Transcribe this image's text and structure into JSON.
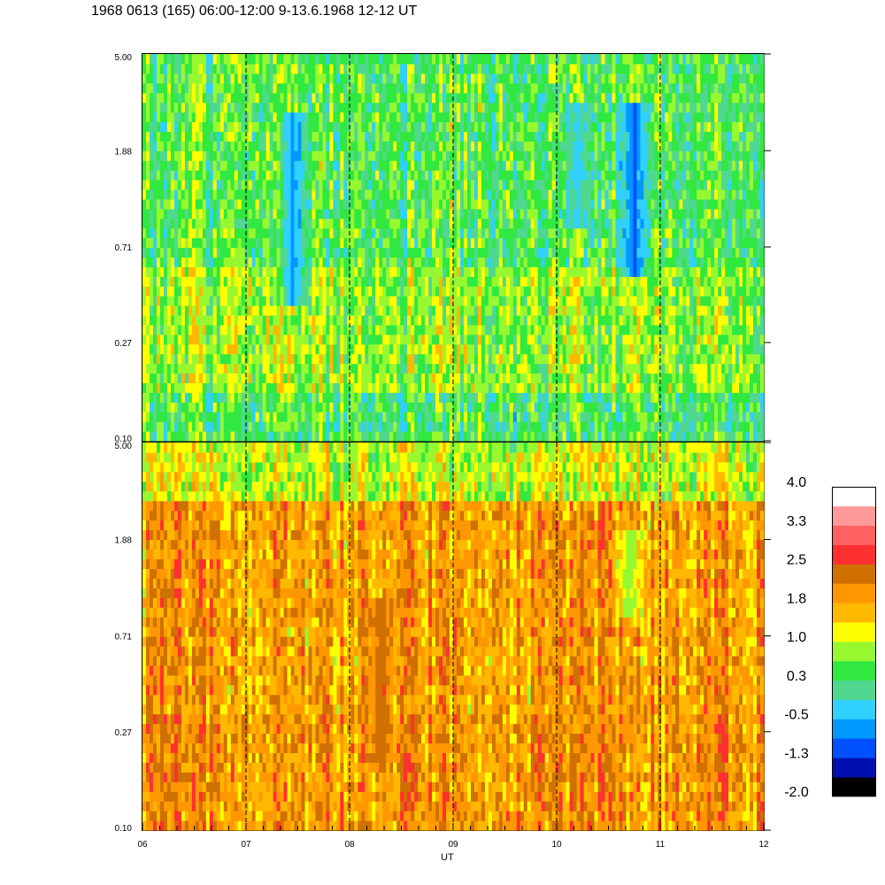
{
  "title": "1968 0613 (165) 06:00-12:00 9-13.6.1968  12-12 UT",
  "xlabel": "UT",
  "x_ticks": [
    "06",
    "07",
    "08",
    "09",
    "10",
    "11",
    "12"
  ],
  "y_ticks": [
    "0.10",
    "0.27",
    "0.71",
    "1.88",
    "5.00"
  ],
  "colorbar": {
    "labels": [
      "4.0",
      "3.3",
      "2.5",
      "1.8",
      "1.0",
      "0.3",
      "-0.5",
      "-1.3",
      "-2.0"
    ],
    "colors": [
      "#000000",
      "#0010b0",
      "#0050ff",
      "#0098ff",
      "#30d0ff",
      "#50d890",
      "#30e840",
      "#98f830",
      "#ffff00",
      "#ffb800",
      "#ff9800",
      "#d07000",
      "#ff3030",
      "#ff6060",
      "#ff9898",
      "#ffffff"
    ]
  },
  "chart_data": [
    {
      "type": "heatmap",
      "panel": "upper",
      "xlabel": "UT",
      "x_range": [
        6,
        12
      ],
      "y_ticks": [
        0.1,
        0.27,
        0.71,
        1.88,
        5.0
      ],
      "y_scale": "log",
      "y_range": [
        0.1,
        5.0
      ],
      "value_range": [
        -2.0,
        4.0
      ],
      "dominant_level": 0.8,
      "features": [
        {
          "x_center": 7.45,
          "y_range": [
            0.4,
            2.8
          ],
          "level": -1.0
        },
        {
          "x_center": 10.2,
          "y_range": [
            0.9,
            3.0
          ],
          "level": -0.7
        },
        {
          "x_center": 10.75,
          "y_range": [
            0.55,
            3.0
          ],
          "level": -1.5
        }
      ]
    },
    {
      "type": "heatmap",
      "panel": "lower",
      "xlabel": "UT",
      "x_range": [
        6,
        12
      ],
      "y_ticks": [
        0.1,
        0.27,
        0.71,
        1.88,
        5.0
      ],
      "y_scale": "log",
      "y_range": [
        0.1,
        5.0
      ],
      "value_range": [
        -2.0,
        4.0
      ],
      "dominant_level": 1.9,
      "features": [
        {
          "x_center": 8.3,
          "y_range": [
            0.2,
            1.0
          ],
          "level": 2.6
        },
        {
          "x_center": 10.7,
          "y_range": [
            0.9,
            2.0
          ],
          "level": 0.5
        }
      ]
    }
  ]
}
